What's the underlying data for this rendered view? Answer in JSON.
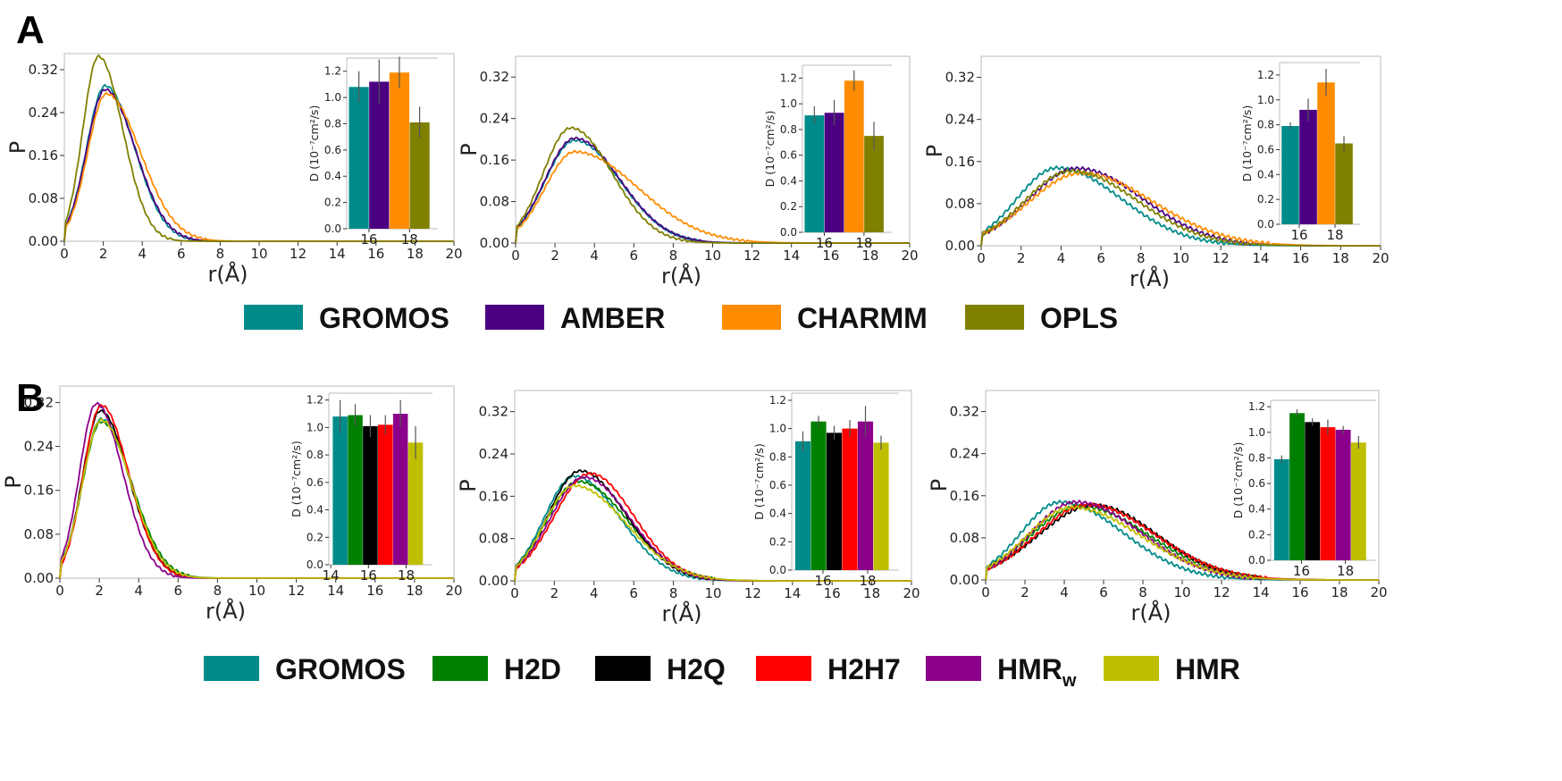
{
  "panels": [
    {
      "letter": "A"
    },
    {
      "letter": "B"
    }
  ],
  "legend_A": {
    "items": [
      {
        "label": "GROMOS",
        "color": "#008b8b"
      },
      {
        "label": "AMBER",
        "color": "#4b0082"
      },
      {
        "label": "CHARMM",
        "color": "#ff8c00"
      },
      {
        "label": "OPLS",
        "color": "#808000"
      }
    ]
  },
  "legend_B": {
    "items": [
      {
        "label": "GROMOS",
        "color": "#008b8b"
      },
      {
        "label": "H2D",
        "color": "#008000"
      },
      {
        "label": "H2Q",
        "color": "#000000"
      },
      {
        "label": "H2H7",
        "color": "#ff0000"
      },
      {
        "label": "HMR",
        "sub": "w",
        "color": "#8b008b"
      },
      {
        "label": "HMR",
        "color": "#bfbf00"
      }
    ]
  },
  "chart_data": [
    {
      "id": "A1",
      "type": "line",
      "xlabel": "r(Å)",
      "ylabel": "P",
      "xlim": [
        0,
        20
      ],
      "ylim": [
        0,
        0.35
      ],
      "xticks": [
        0,
        2,
        4,
        6,
        8,
        10,
        12,
        14,
        16,
        18,
        20
      ],
      "yticks": [
        0.0,
        0.08,
        0.16,
        0.24,
        0.32
      ],
      "series": [
        {
          "name": "GROMOS",
          "color": "#008b8b",
          "peak_x": 2.1,
          "peak_y": 0.29,
          "sigma_l": 0.95,
          "sigma_r": 1.5,
          "ripple": 0.002
        },
        {
          "name": "AMBER",
          "color": "#4b0082",
          "peak_x": 2.1,
          "peak_y": 0.283,
          "sigma_l": 0.95,
          "sigma_r": 1.55,
          "ripple": 0.002
        },
        {
          "name": "CHARMM",
          "color": "#ff8c00",
          "peak_x": 2.15,
          "peak_y": 0.275,
          "sigma_l": 0.95,
          "sigma_r": 1.75,
          "ripple": 0.002
        },
        {
          "name": "OPLS",
          "color": "#808000",
          "peak_x": 1.75,
          "peak_y": 0.345,
          "sigma_l": 0.8,
          "sigma_r": 1.25,
          "ripple": 0.002
        }
      ],
      "inset": {
        "ylabel": "D (10⁻⁷cm²/s)",
        "ylim": [
          0,
          1.3
        ],
        "yticks": [
          0.0,
          0.2,
          0.4,
          0.6,
          0.8,
          1.0,
          1.2
        ],
        "xticks": [
          16,
          18
        ],
        "xlim": [
          14.9,
          19.4
        ],
        "bars": [
          {
            "name": "GROMOS",
            "x": 15.5,
            "value": 1.08,
            "err": 0.12,
            "color": "#008b8b"
          },
          {
            "name": "AMBER",
            "x": 16.5,
            "value": 1.12,
            "err": 0.17,
            "color": "#4b0082"
          },
          {
            "name": "CHARMM",
            "x": 17.5,
            "value": 1.19,
            "err": 0.12,
            "color": "#ff8c00"
          },
          {
            "name": "OPLS",
            "x": 18.5,
            "value": 0.81,
            "err": 0.12,
            "color": "#808000"
          }
        ]
      }
    },
    {
      "id": "A2",
      "type": "line",
      "xlabel": "r(Å)",
      "ylabel": "P",
      "xlim": [
        0,
        20
      ],
      "ylim": [
        0,
        0.36
      ],
      "xticks": [
        0,
        2,
        4,
        6,
        8,
        10,
        12,
        14,
        16,
        18,
        20
      ],
      "yticks": [
        0.0,
        0.08,
        0.16,
        0.24,
        0.32
      ],
      "series": [
        {
          "name": "GROMOS",
          "color": "#008b8b",
          "peak_x": 3.0,
          "peak_y": 0.198,
          "sigma_l": 1.5,
          "sigma_r": 2.3,
          "ripple": 0.002
        },
        {
          "name": "AMBER",
          "color": "#4b0082",
          "peak_x": 3.0,
          "peak_y": 0.202,
          "sigma_l": 1.5,
          "sigma_r": 2.3,
          "ripple": 0.002
        },
        {
          "name": "CHARMM",
          "color": "#ff8c00",
          "peak_x": 3.0,
          "peak_y": 0.176,
          "sigma_l": 1.5,
          "sigma_r": 3.2,
          "ripple": 0.002
        },
        {
          "name": "OPLS",
          "color": "#808000",
          "peak_x": 2.8,
          "peak_y": 0.222,
          "sigma_l": 1.4,
          "sigma_r": 2.1,
          "ripple": 0.002
        }
      ],
      "inset": {
        "ylabel": "D (10⁻⁷cm²/s)",
        "ylim": [
          0,
          1.3
        ],
        "yticks": [
          0.0,
          0.2,
          0.4,
          0.6,
          0.8,
          1.0,
          1.2
        ],
        "xticks": [
          16,
          18
        ],
        "xlim": [
          14.9,
          19.4
        ],
        "bars": [
          {
            "name": "GROMOS",
            "x": 15.5,
            "value": 0.91,
            "err": 0.07,
            "color": "#008b8b"
          },
          {
            "name": "AMBER",
            "x": 16.5,
            "value": 0.93,
            "err": 0.1,
            "color": "#4b0082"
          },
          {
            "name": "CHARMM",
            "x": 17.5,
            "value": 1.18,
            "err": 0.08,
            "color": "#ff8c00"
          },
          {
            "name": "OPLS",
            "x": 18.5,
            "value": 0.75,
            "err": 0.11,
            "color": "#808000"
          }
        ]
      }
    },
    {
      "id": "A3",
      "type": "line",
      "xlabel": "r(Å)",
      "ylabel": "P",
      "xlim": [
        0,
        20
      ],
      "ylim": [
        0,
        0.36
      ],
      "xticks": [
        0,
        2,
        4,
        6,
        8,
        10,
        12,
        14,
        16,
        18,
        20
      ],
      "yticks": [
        0.0,
        0.08,
        0.16,
        0.24,
        0.32
      ],
      "series": [
        {
          "name": "GROMOS",
          "color": "#008b8b",
          "peak_x": 3.8,
          "peak_y": 0.148,
          "sigma_l": 2.0,
          "sigma_r": 3.2,
          "ripple": 0.003
        },
        {
          "name": "AMBER",
          "color": "#4b0082",
          "peak_x": 4.8,
          "peak_y": 0.147,
          "sigma_l": 2.4,
          "sigma_r": 3.3,
          "ripple": 0.003
        },
        {
          "name": "CHARMM",
          "color": "#ff8c00",
          "peak_x": 5.0,
          "peak_y": 0.138,
          "sigma_l": 2.6,
          "sigma_r": 3.6,
          "ripple": 0.003
        },
        {
          "name": "OPLS",
          "color": "#808000",
          "peak_x": 4.5,
          "peak_y": 0.142,
          "sigma_l": 2.3,
          "sigma_r": 3.3,
          "ripple": 0.003
        }
      ],
      "inset": {
        "ylabel": "D (10⁻⁷cm²/s)",
        "ylim": [
          0,
          1.3
        ],
        "yticks": [
          0.0,
          0.2,
          0.4,
          0.6,
          0.8,
          1.0,
          1.2
        ],
        "xticks": [
          16,
          18
        ],
        "xlim": [
          14.9,
          19.4
        ],
        "bars": [
          {
            "name": "GROMOS",
            "x": 15.5,
            "value": 0.79,
            "err": 0.03,
            "color": "#008b8b"
          },
          {
            "name": "AMBER",
            "x": 16.5,
            "value": 0.92,
            "err": 0.09,
            "color": "#4b0082"
          },
          {
            "name": "CHARMM",
            "x": 17.5,
            "value": 1.14,
            "err": 0.11,
            "color": "#ff8c00"
          },
          {
            "name": "OPLS",
            "x": 18.5,
            "value": 0.65,
            "err": 0.06,
            "color": "#808000"
          }
        ]
      }
    },
    {
      "id": "B1",
      "type": "line",
      "xlabel": "r(Å)",
      "ylabel": "P",
      "xlim": [
        0,
        20
      ],
      "ylim": [
        0,
        0.35
      ],
      "xticks": [
        0,
        2,
        4,
        6,
        8,
        10,
        12,
        14,
        16,
        18,
        20
      ],
      "yticks": [
        0.0,
        0.08,
        0.16,
        0.24,
        0.32
      ],
      "series": [
        {
          "name": "GROMOS",
          "color": "#008b8b",
          "peak_x": 2.1,
          "peak_y": 0.29,
          "sigma_l": 0.95,
          "sigma_r": 1.5,
          "ripple": 0.002
        },
        {
          "name": "H2D",
          "color": "#008000",
          "peak_x": 2.1,
          "peak_y": 0.285,
          "sigma_l": 0.95,
          "sigma_r": 1.55,
          "ripple": 0.002
        },
        {
          "name": "H2Q",
          "color": "#000000",
          "peak_x": 2.05,
          "peak_y": 0.305,
          "sigma_l": 0.9,
          "sigma_r": 1.45,
          "ripple": 0.002
        },
        {
          "name": "H2H7",
          "color": "#ff0000",
          "peak_x": 2.1,
          "peak_y": 0.315,
          "sigma_l": 0.9,
          "sigma_r": 1.4,
          "ripple": 0.002
        },
        {
          "name": "HMRw",
          "color": "#8b008b",
          "peak_x": 1.85,
          "peak_y": 0.318,
          "sigma_l": 0.85,
          "sigma_r": 1.35,
          "ripple": 0.002
        },
        {
          "name": "HMR",
          "color": "#bfbf00",
          "peak_x": 2.1,
          "peak_y": 0.288,
          "sigma_l": 0.95,
          "sigma_r": 1.5,
          "ripple": 0.002
        }
      ],
      "inset": {
        "ylabel": "D (10⁻⁷cm²/s)",
        "ylim": [
          0,
          1.25
        ],
        "yticks": [
          0.0,
          0.2,
          0.4,
          0.6,
          0.8,
          1.0,
          1.2
        ],
        "xticks": [
          14,
          16,
          18
        ],
        "xlim": [
          13.9,
          19.4
        ],
        "bars": [
          {
            "name": "GROMOS",
            "x": 14.5,
            "value": 1.08,
            "err": 0.12,
            "color": "#008b8b"
          },
          {
            "name": "H2D",
            "x": 15.3,
            "value": 1.09,
            "err": 0.08,
            "color": "#008000"
          },
          {
            "name": "H2Q",
            "x": 16.1,
            "value": 1.01,
            "err": 0.08,
            "color": "#000000"
          },
          {
            "name": "H2H7",
            "x": 16.9,
            "value": 1.02,
            "err": 0.07,
            "color": "#ff0000"
          },
          {
            "name": "HMRw",
            "x": 17.7,
            "value": 1.1,
            "err": 0.1,
            "color": "#8b008b"
          },
          {
            "name": "HMR",
            "x": 18.5,
            "value": 0.89,
            "err": 0.12,
            "color": "#bfbf00"
          }
        ]
      }
    },
    {
      "id": "B2",
      "type": "line",
      "xlabel": "r(Å)",
      "ylabel": "P",
      "xlim": [
        0,
        20
      ],
      "ylim": [
        0,
        0.36
      ],
      "xticks": [
        0,
        2,
        4,
        6,
        8,
        10,
        12,
        14,
        16,
        18,
        20
      ],
      "yticks": [
        0.0,
        0.08,
        0.16,
        0.24,
        0.32
      ],
      "series": [
        {
          "name": "GROMOS",
          "color": "#008b8b",
          "peak_x": 3.0,
          "peak_y": 0.198,
          "sigma_l": 1.5,
          "sigma_r": 2.3,
          "ripple": 0.002
        },
        {
          "name": "H2D",
          "color": "#008000",
          "peak_x": 3.2,
          "peak_y": 0.188,
          "sigma_l": 1.6,
          "sigma_r": 2.5,
          "ripple": 0.002
        },
        {
          "name": "H2Q",
          "color": "#000000",
          "peak_x": 3.3,
          "peak_y": 0.208,
          "sigma_l": 1.6,
          "sigma_r": 2.3,
          "ripple": 0.002
        },
        {
          "name": "H2H7",
          "color": "#ff0000",
          "peak_x": 3.8,
          "peak_y": 0.203,
          "sigma_l": 1.8,
          "sigma_r": 2.2,
          "ripple": 0.002
        },
        {
          "name": "HMRw",
          "color": "#8b008b",
          "peak_x": 3.5,
          "peak_y": 0.196,
          "sigma_l": 1.7,
          "sigma_r": 2.3,
          "ripple": 0.002
        },
        {
          "name": "HMR",
          "color": "#bfbf00",
          "peak_x": 3.0,
          "peak_y": 0.18,
          "sigma_l": 1.5,
          "sigma_r": 2.6,
          "ripple": 0.002
        }
      ],
      "inset": {
        "ylabel": "D (10⁻⁷cm²/s)",
        "ylim": [
          0,
          1.25
        ],
        "yticks": [
          0.0,
          0.2,
          0.4,
          0.6,
          0.8,
          1.0,
          1.2
        ],
        "xticks": [
          16,
          18
        ],
        "xlim": [
          14.6,
          19.4
        ],
        "bars": [
          {
            "name": "GROMOS",
            "x": 15.1,
            "value": 0.91,
            "err": 0.07,
            "color": "#008b8b"
          },
          {
            "name": "H2D",
            "x": 15.8,
            "value": 1.05,
            "err": 0.04,
            "color": "#008000"
          },
          {
            "name": "H2Q",
            "x": 16.5,
            "value": 0.97,
            "err": 0.05,
            "color": "#000000"
          },
          {
            "name": "H2H7",
            "x": 17.2,
            "value": 1.0,
            "err": 0.06,
            "color": "#ff0000"
          },
          {
            "name": "HMRw",
            "x": 17.9,
            "value": 1.05,
            "err": 0.11,
            "color": "#8b008b"
          },
          {
            "name": "HMR",
            "x": 18.6,
            "value": 0.9,
            "err": 0.05,
            "color": "#bfbf00"
          }
        ]
      }
    },
    {
      "id": "B3",
      "type": "line",
      "xlabel": "r(Å)",
      "ylabel": "P",
      "xlim": [
        0,
        20
      ],
      "ylim": [
        0,
        0.36
      ],
      "xticks": [
        0,
        2,
        4,
        6,
        8,
        10,
        12,
        14,
        16,
        18,
        20
      ],
      "yticks": [
        0.0,
        0.08,
        0.16,
        0.24,
        0.32
      ],
      "series": [
        {
          "name": "GROMOS",
          "color": "#008b8b",
          "peak_x": 3.8,
          "peak_y": 0.148,
          "sigma_l": 2.0,
          "sigma_r": 3.2,
          "ripple": 0.003
        },
        {
          "name": "H2D",
          "color": "#008000",
          "peak_x": 4.8,
          "peak_y": 0.14,
          "sigma_l": 2.5,
          "sigma_r": 3.5,
          "ripple": 0.003
        },
        {
          "name": "H2Q",
          "color": "#000000",
          "peak_x": 5.5,
          "peak_y": 0.142,
          "sigma_l": 2.8,
          "sigma_r": 3.2,
          "ripple": 0.003
        },
        {
          "name": "H2H7",
          "color": "#ff0000",
          "peak_x": 5.2,
          "peak_y": 0.143,
          "sigma_l": 2.6,
          "sigma_r": 3.4,
          "ripple": 0.003
        },
        {
          "name": "HMRw",
          "color": "#8b008b",
          "peak_x": 4.6,
          "peak_y": 0.148,
          "sigma_l": 2.3,
          "sigma_r": 3.3,
          "ripple": 0.003
        },
        {
          "name": "HMR",
          "color": "#bfbf00",
          "peak_x": 4.4,
          "peak_y": 0.138,
          "sigma_l": 2.3,
          "sigma_r": 3.5,
          "ripple": 0.003
        }
      ],
      "inset": {
        "ylabel": "D (10⁻⁷cm²/s)",
        "ylim": [
          0,
          1.25
        ],
        "yticks": [
          0.0,
          0.2,
          0.4,
          0.6,
          0.8,
          1.0,
          1.2
        ],
        "xticks": [
          16,
          18
        ],
        "xlim": [
          14.6,
          19.4
        ],
        "bars": [
          {
            "name": "GROMOS",
            "x": 15.1,
            "value": 0.79,
            "err": 0.03,
            "color": "#008b8b"
          },
          {
            "name": "H2D",
            "x": 15.8,
            "value": 1.15,
            "err": 0.03,
            "color": "#008000"
          },
          {
            "name": "H2Q",
            "x": 16.5,
            "value": 1.08,
            "err": 0.03,
            "color": "#000000"
          },
          {
            "name": "H2H7",
            "x": 17.2,
            "value": 1.04,
            "err": 0.06,
            "color": "#ff0000"
          },
          {
            "name": "HMRw",
            "x": 17.9,
            "value": 1.02,
            "err": 0.03,
            "color": "#8b008b"
          },
          {
            "name": "HMR",
            "x": 18.6,
            "value": 0.92,
            "err": 0.05,
            "color": "#bfbf00"
          }
        ]
      }
    }
  ]
}
